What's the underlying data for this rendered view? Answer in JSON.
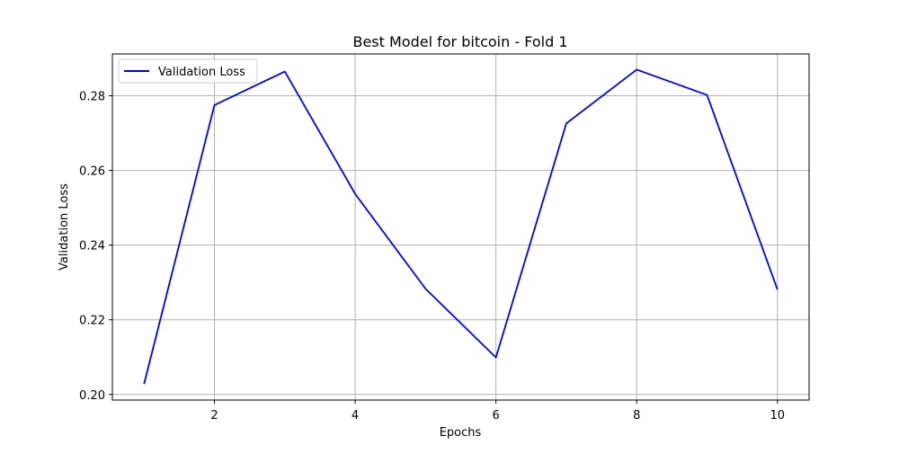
{
  "chart_data": {
    "type": "line",
    "title": "Best Model for bitcoin - Fold 1",
    "xlabel": "Epochs",
    "ylabel": "Validation Loss",
    "xlim": [
      0.55,
      10.45
    ],
    "ylim": [
      0.1985,
      0.2912
    ],
    "x_ticks": [
      2,
      4,
      6,
      8,
      10
    ],
    "x_tick_labels": [
      "2",
      "4",
      "6",
      "8",
      "10"
    ],
    "y_ticks": [
      0.2,
      0.22,
      0.24,
      0.26,
      0.28
    ],
    "y_tick_labels": [
      "0.20",
      "0.22",
      "0.24",
      "0.26",
      "0.28"
    ],
    "grid": true,
    "legend_position": "top-left",
    "series": [
      {
        "name": "Validation Loss",
        "color": "#0000ff",
        "x": [
          1,
          2,
          3,
          4,
          5,
          6,
          7,
          8,
          9,
          10
        ],
        "y": [
          0.2028,
          0.2775,
          0.2865,
          0.2537,
          0.2283,
          0.2099,
          0.2726,
          0.287,
          0.2802,
          0.2281
        ]
      }
    ]
  }
}
